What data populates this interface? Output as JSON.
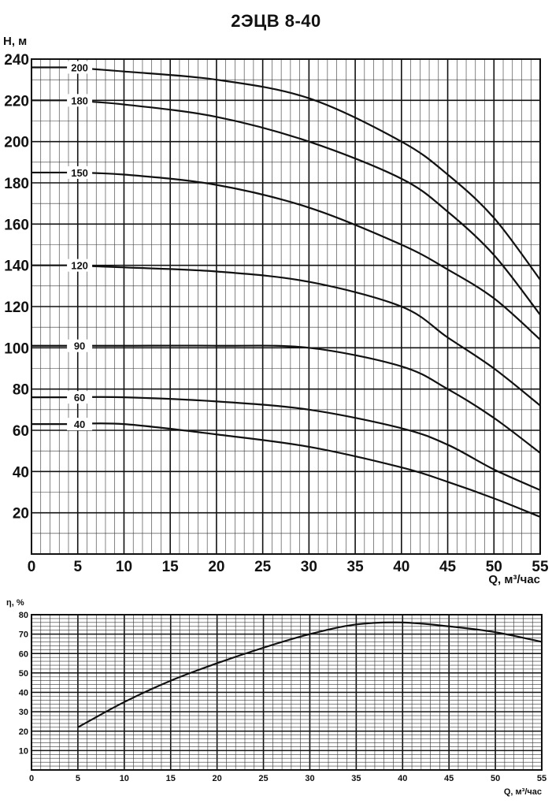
{
  "title": "2ЭЦВ 8-40",
  "chart_data": [
    {
      "type": "line",
      "ylabel": "H, м",
      "xlabel": "Q, м³/час",
      "xlim": [
        0,
        55
      ],
      "ylim": [
        0,
        240
      ],
      "x_ticks": [
        0,
        5,
        10,
        15,
        20,
        25,
        30,
        35,
        40,
        45,
        50,
        55
      ],
      "y_ticks": [
        20,
        40,
        60,
        80,
        100,
        120,
        140,
        160,
        180,
        200,
        220,
        240
      ],
      "grid": true,
      "series": [
        {
          "name": "200",
          "x": [
            4,
            10,
            20,
            30,
            40,
            45,
            50,
            55
          ],
          "y": [
            236,
            234,
            230,
            221,
            200,
            184,
            163,
            133
          ]
        },
        {
          "name": "180",
          "x": [
            4,
            10,
            20,
            30,
            40,
            45,
            50,
            55
          ],
          "y": [
            220,
            218,
            212,
            200,
            182,
            166,
            145,
            116
          ]
        },
        {
          "name": "150",
          "x": [
            4,
            10,
            20,
            30,
            40,
            45,
            50,
            55
          ],
          "y": [
            185,
            184,
            179,
            168,
            150,
            138,
            124,
            104
          ]
        },
        {
          "name": "120",
          "x": [
            4,
            10,
            20,
            30,
            40,
            45,
            50,
            55
          ],
          "y": [
            140,
            139,
            137,
            132,
            120,
            105,
            90,
            72
          ]
        },
        {
          "name": "90",
          "x": [
            4,
            10,
            20,
            30,
            40,
            45,
            50,
            55
          ],
          "y": [
            101,
            101,
            101,
            100,
            91,
            80,
            66,
            49
          ]
        },
        {
          "name": "60",
          "x": [
            4,
            10,
            20,
            30,
            40,
            45,
            50,
            55
          ],
          "y": [
            76,
            76,
            74,
            70,
            61,
            53,
            41,
            31
          ]
        },
        {
          "name": "40",
          "x": [
            4,
            10,
            20,
            30,
            40,
            45,
            50,
            55
          ],
          "y": [
            63,
            63,
            58,
            52,
            42,
            35,
            27,
            18
          ]
        }
      ]
    },
    {
      "type": "line",
      "ylabel": "η, %",
      "xlabel": "Q, м³/час",
      "xlim": [
        0,
        55
      ],
      "ylim": [
        0,
        80
      ],
      "x_ticks": [
        0,
        5,
        10,
        15,
        20,
        25,
        30,
        35,
        40,
        45,
        50,
        55
      ],
      "y_ticks": [
        10,
        20,
        30,
        40,
        50,
        60,
        70,
        80
      ],
      "grid": true,
      "series": [
        {
          "x": [
            5,
            10,
            15,
            20,
            25,
            30,
            35,
            40,
            45,
            50,
            55
          ],
          "y": [
            22,
            35,
            46,
            55,
            63,
            70,
            75,
            76,
            74,
            71,
            66
          ]
        }
      ]
    }
  ]
}
